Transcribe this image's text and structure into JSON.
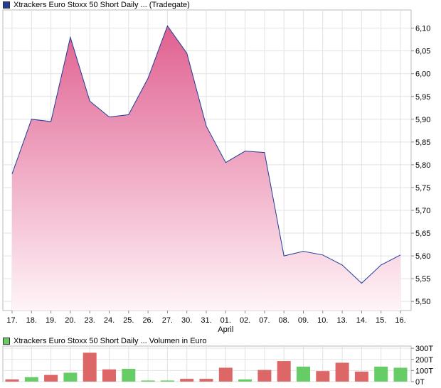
{
  "price_legend": {
    "text": "Xtrackers Euro Stoxx 50 Short Daily ... (Tradegate)",
    "color": "#1f3d99"
  },
  "volume_legend": {
    "text": "Xtrackers Euro Stoxx 50 Short Daily ... Volumen in Euro",
    "color": "#66cc66"
  },
  "chart_data": [
    {
      "type": "area",
      "x": [
        "17.",
        "18.",
        "19.",
        "20.",
        "23.",
        "24.",
        "25.",
        "26.",
        "27.",
        "30.",
        "31.",
        "01.",
        "02.",
        "07.",
        "08.",
        "09.",
        "10.",
        "13.",
        "14.",
        "15.",
        "16."
      ],
      "x_sublabels": [
        {
          "index": 11,
          "label": "April"
        }
      ],
      "series": [
        {
          "values": [
            5.78,
            5.9,
            5.895,
            6.08,
            5.94,
            5.905,
            5.91,
            5.99,
            6.105,
            6.045,
            5.885,
            5.805,
            5.83,
            5.827,
            5.6,
            5.61,
            5.602,
            5.58,
            5.54,
            5.58,
            5.602
          ],
          "color": "#1f3d99"
        }
      ],
      "y_ticks": [
        "5,50",
        "5,55",
        "5,60",
        "5,65",
        "5,70",
        "5,75",
        "5,80",
        "5,85",
        "5,90",
        "5,95",
        "6,00",
        "6,05",
        "6,10"
      ],
      "ylim": [
        5.48,
        6.14
      ],
      "fill_colors": [
        "#e06090",
        "#fff4f8"
      ],
      "grid": true
    },
    {
      "type": "bar",
      "categories": [
        "17.",
        "18.",
        "19.",
        "20.",
        "23.",
        "24.",
        "25.",
        "26.",
        "27.",
        "30.",
        "31.",
        "01.",
        "02.",
        "07.",
        "08.",
        "09.",
        "10.",
        "13.",
        "14.",
        "15.",
        "16."
      ],
      "values": [
        20,
        40,
        60,
        80,
        260,
        110,
        115,
        10,
        10,
        25,
        25,
        125,
        20,
        105,
        185,
        135,
        95,
        170,
        90,
        135,
        125
      ],
      "bar_colors": [
        "#dd6666",
        "#66cc66",
        "#dd6666",
        "#66cc66",
        "#dd6666",
        "#dd6666",
        "#66cc66",
        "#66cc66",
        "#66cc66",
        "#dd6666",
        "#dd6666",
        "#dd6666",
        "#66cc66",
        "#dd6666",
        "#dd6666",
        "#66cc66",
        "#dd6666",
        "#dd6666",
        "#dd6666",
        "#66cc66",
        "#66cc66"
      ],
      "y_ticks": [
        "0T",
        "100T",
        "200T",
        "300T"
      ],
      "ylim": [
        0,
        320
      ]
    }
  ]
}
